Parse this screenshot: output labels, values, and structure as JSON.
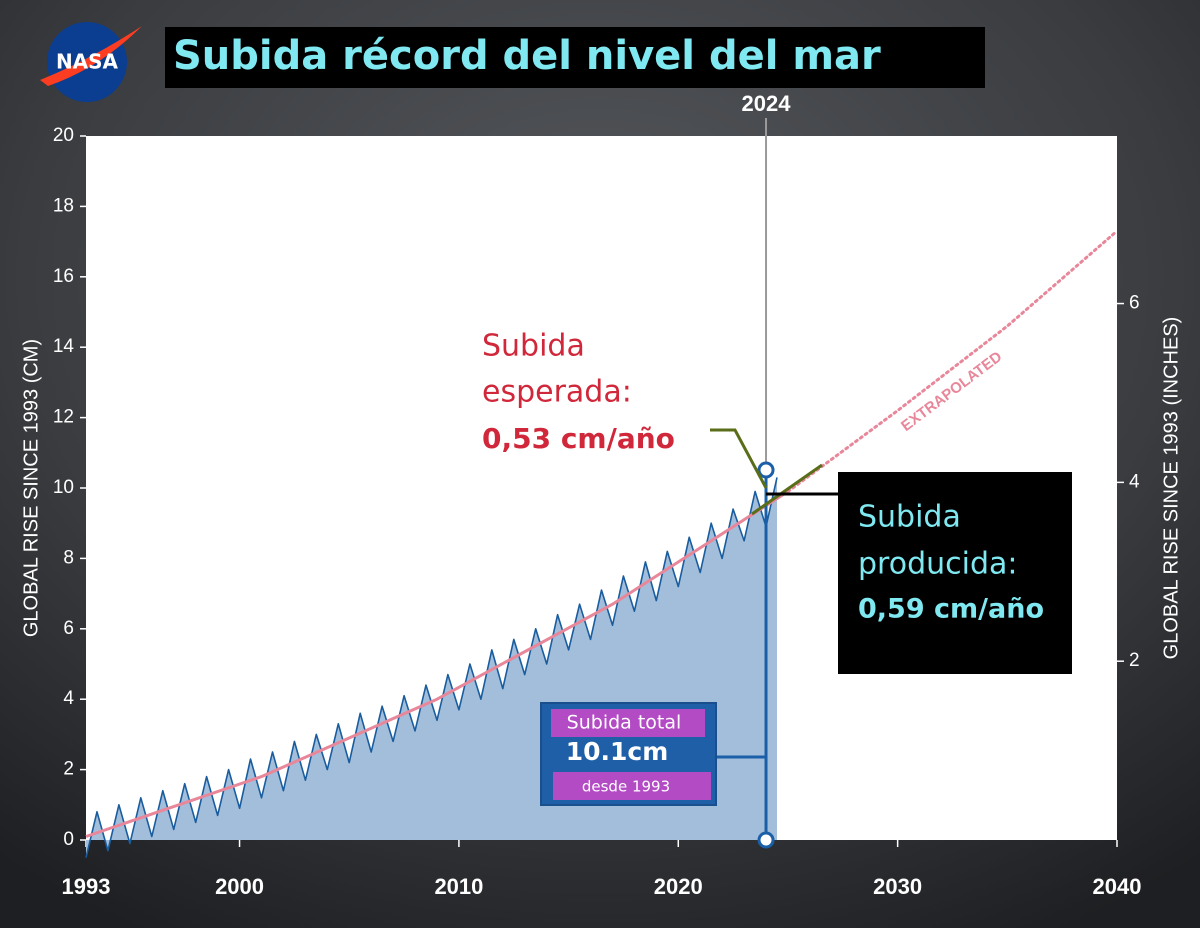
{
  "logo": "NASA",
  "chart_data": {
    "type": "line",
    "title": "Subida récord del nivel del mar",
    "y_label": "GLOBAL RISE SINCE 1993 (CM)",
    "y2_label": "GLOBAL RISE SINCE 1993 (INCHES)",
    "xlim": [
      1993,
      2040
    ],
    "xticks": [
      1993,
      2000,
      2010,
      2020,
      2030,
      2040
    ],
    "ylim": [
      0,
      20
    ],
    "yticks": [
      0,
      2,
      4,
      6,
      8,
      10,
      12,
      14,
      16,
      18,
      20
    ],
    "y2lim": [
      0,
      7.874
    ],
    "y2ticks": [
      2,
      4,
      6
    ],
    "marker_year": 2024,
    "series": [
      {
        "color": "#1a5d9e",
        "fill": "#a3bedb",
        "x": [
          1993,
          1993.5,
          1994,
          1994.5,
          1995,
          1995.5,
          1996,
          1996.5,
          1997,
          1997.5,
          1998,
          1998.5,
          1999,
          1999.5,
          2000,
          2000.5,
          2001,
          2001.5,
          2002,
          2002.5,
          2003,
          2003.5,
          2004,
          2004.5,
          2005,
          2005.5,
          2006,
          2006.5,
          2007,
          2007.5,
          2008,
          2008.5,
          2009,
          2009.5,
          2010,
          2010.5,
          2011,
          2011.5,
          2012,
          2012.5,
          2013,
          2013.5,
          2014,
          2014.5,
          2015,
          2015.5,
          2016,
          2016.5,
          2017,
          2017.5,
          2018,
          2018.5,
          2019,
          2019.5,
          2020,
          2020.5,
          2021,
          2021.5,
          2022,
          2022.5,
          2023,
          2023.5,
          2024,
          2024.5
        ],
        "values": [
          -0.5,
          0.8,
          -0.3,
          1.0,
          -0.1,
          1.2,
          0.1,
          1.4,
          0.3,
          1.6,
          0.5,
          1.8,
          0.7,
          2.0,
          0.9,
          2.3,
          1.2,
          2.5,
          1.4,
          2.8,
          1.7,
          3.0,
          2.0,
          3.3,
          2.2,
          3.6,
          2.5,
          3.8,
          2.8,
          4.1,
          3.1,
          4.4,
          3.4,
          4.7,
          3.7,
          5.0,
          4.0,
          5.4,
          4.3,
          5.7,
          4.7,
          6.0,
          5.0,
          6.4,
          5.4,
          6.7,
          5.7,
          7.1,
          6.1,
          7.5,
          6.5,
          7.9,
          6.8,
          8.2,
          7.2,
          8.6,
          7.6,
          9.0,
          8.0,
          9.4,
          8.5,
          9.9,
          8.9,
          10.3
        ]
      },
      {
        "color": "#e8879a",
        "x": [
          1993,
          2001,
          2009,
          2017,
          2025
        ],
        "values": [
          0.1,
          1.8,
          4.0,
          6.7,
          9.9
        ]
      },
      {
        "color": "#e8879a",
        "dashed": true,
        "x": [
          2025,
          2030,
          2035,
          2040
        ],
        "values": [
          9.9,
          12.2,
          14.6,
          17.3
        ]
      }
    ],
    "annotations": {
      "expected": {
        "lines": [
          "Subida",
          "esperada:"
        ],
        "rate": "0,53 cm/año"
      },
      "observed": {
        "lines": [
          "Subida",
          "producida:"
        ],
        "rate": "0,59 cm/año"
      },
      "total": {
        "heading": "Subida total",
        "amount": "10.1cm",
        "since": "desde 1993"
      },
      "extrapolated": "EXTRAPOLATED"
    }
  }
}
